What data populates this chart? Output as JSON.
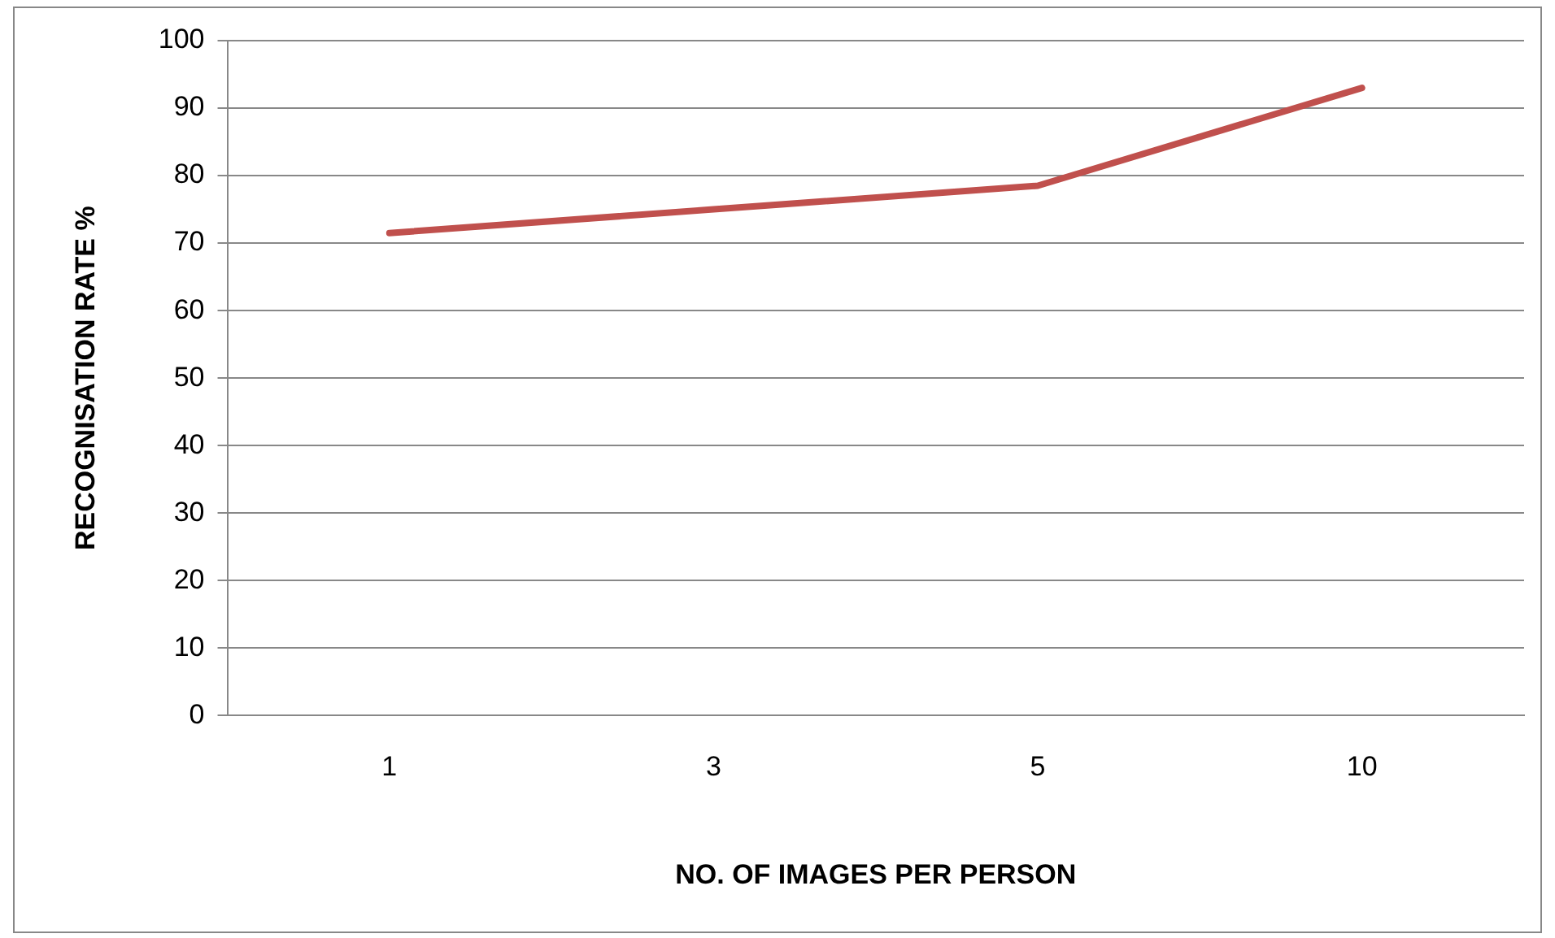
{
  "chart_data": {
    "type": "line",
    "xlabel": "NO. OF IMAGES PER PERSON",
    "ylabel": "RECOGNISATION RATE %",
    "categories": [
      "1",
      "3",
      "5",
      "10"
    ],
    "series": [
      {
        "color": "#c0504d",
        "values": [
          71.5,
          75,
          78.5,
          93
        ]
      }
    ],
    "ylim": [
      0,
      100
    ],
    "yticks": [
      0,
      10,
      20,
      30,
      40,
      50,
      60,
      70,
      80,
      90,
      100
    ],
    "grid": "y",
    "legend": false,
    "marker": "none"
  }
}
